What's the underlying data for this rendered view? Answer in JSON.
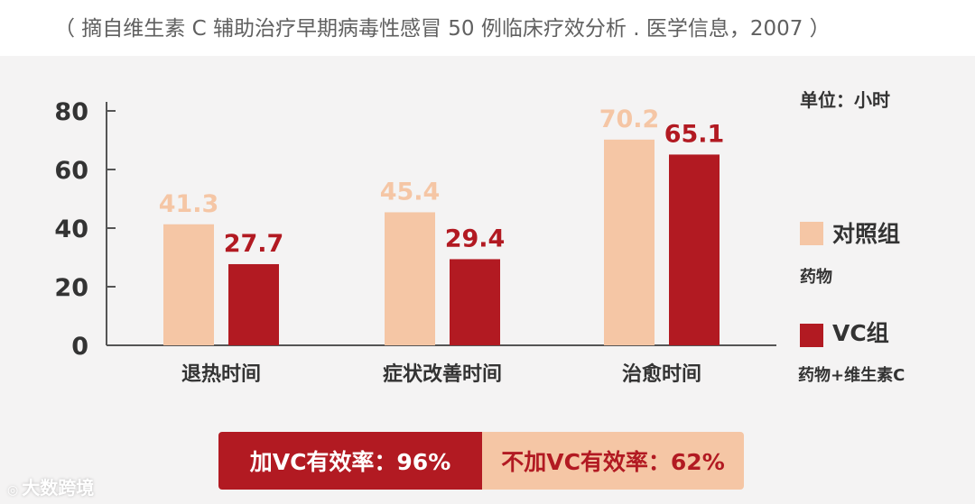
{
  "source_note": "（ 摘自维生素 C 辅助治疗早期病毒性感冒 50 例临床疗效分析 . 医学信息，2007 ）",
  "chart_data": {
    "type": "bar",
    "title": "",
    "xlabel": "",
    "ylabel": "",
    "unit_label": "单位：小时",
    "categories": [
      "退热时间",
      "症状改善时间",
      "治愈时间"
    ],
    "series": [
      {
        "name": "对照组",
        "description": "药物",
        "values": [
          41.3,
          45.4,
          70.2
        ],
        "value_labels": [
          "41.3",
          "45.4",
          "70.2"
        ],
        "color": "#f5c6a5",
        "label_color": "#f5c6a5"
      },
      {
        "name": "VC组",
        "description": "药物+维生素C",
        "values": [
          27.7,
          29.4,
          65.1
        ],
        "value_labels": [
          "27.7",
          "29.4",
          "65.1"
        ],
        "color": "#b21a22",
        "label_color": "#b21a22"
      }
    ],
    "ylim": [
      0,
      80
    ],
    "yticks": [
      0,
      20,
      40,
      60,
      80
    ],
    "ytick_labels": [
      "0",
      "20",
      "40",
      "60",
      "80"
    ],
    "grid": false,
    "legend_position": "right"
  },
  "rates": {
    "with_vc": "加VC有效率：96%",
    "without_vc": "不加VC有效率：62%"
  },
  "watermark": {
    "icon": "chat-bubble-icon",
    "text": "大数跨境"
  },
  "colors": {
    "axis": "#555555",
    "control": "#f5c6a5",
    "vc": "#b21a22",
    "panel": "#f4f3f3"
  }
}
